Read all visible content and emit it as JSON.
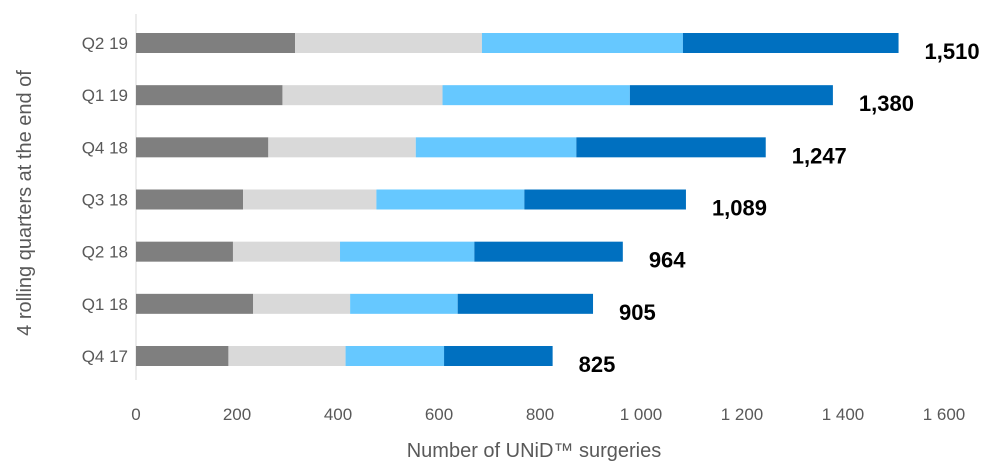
{
  "chart_data": {
    "type": "bar",
    "orientation": "horizontal",
    "stacked": true,
    "title": "",
    "xlabel": "Number of UNiD™ surgeries",
    "ylabel": "4 rolling quarters at the end of",
    "xlim": [
      0,
      1600
    ],
    "x_ticks": [
      0,
      200,
      400,
      600,
      800,
      1000,
      1200,
      1400,
      1600
    ],
    "x_tick_labels": [
      "0",
      "200",
      "400",
      "600",
      "800",
      "1 000",
      "1 200",
      "1 400",
      "1 600"
    ],
    "categories": [
      "Q2 19",
      "Q1 19",
      "Q4 18",
      "Q3 18",
      "Q2 18",
      "Q1 18",
      "Q4 17"
    ],
    "series": [
      {
        "color": "#7f7f7f",
        "values": [
          315,
          290,
          262,
          212,
          192,
          232,
          183
        ]
      },
      {
        "color": "#d9d9d9",
        "values": [
          370,
          317,
          292,
          264,
          212,
          192,
          232
        ]
      },
      {
        "color": "#66c8ff",
        "values": [
          398,
          371,
          318,
          293,
          266,
          213,
          195
        ]
      },
      {
        "color": "#0070c0",
        "values": [
          427,
          402,
          375,
          320,
          294,
          268,
          215
        ]
      }
    ],
    "totals": [
      1510,
      1380,
      1247,
      1089,
      964,
      905,
      825
    ],
    "total_labels": [
      "1,510",
      "1,380",
      "1,247",
      "1,089",
      "964",
      "905",
      "825"
    ],
    "grid": false,
    "legend": "none"
  }
}
